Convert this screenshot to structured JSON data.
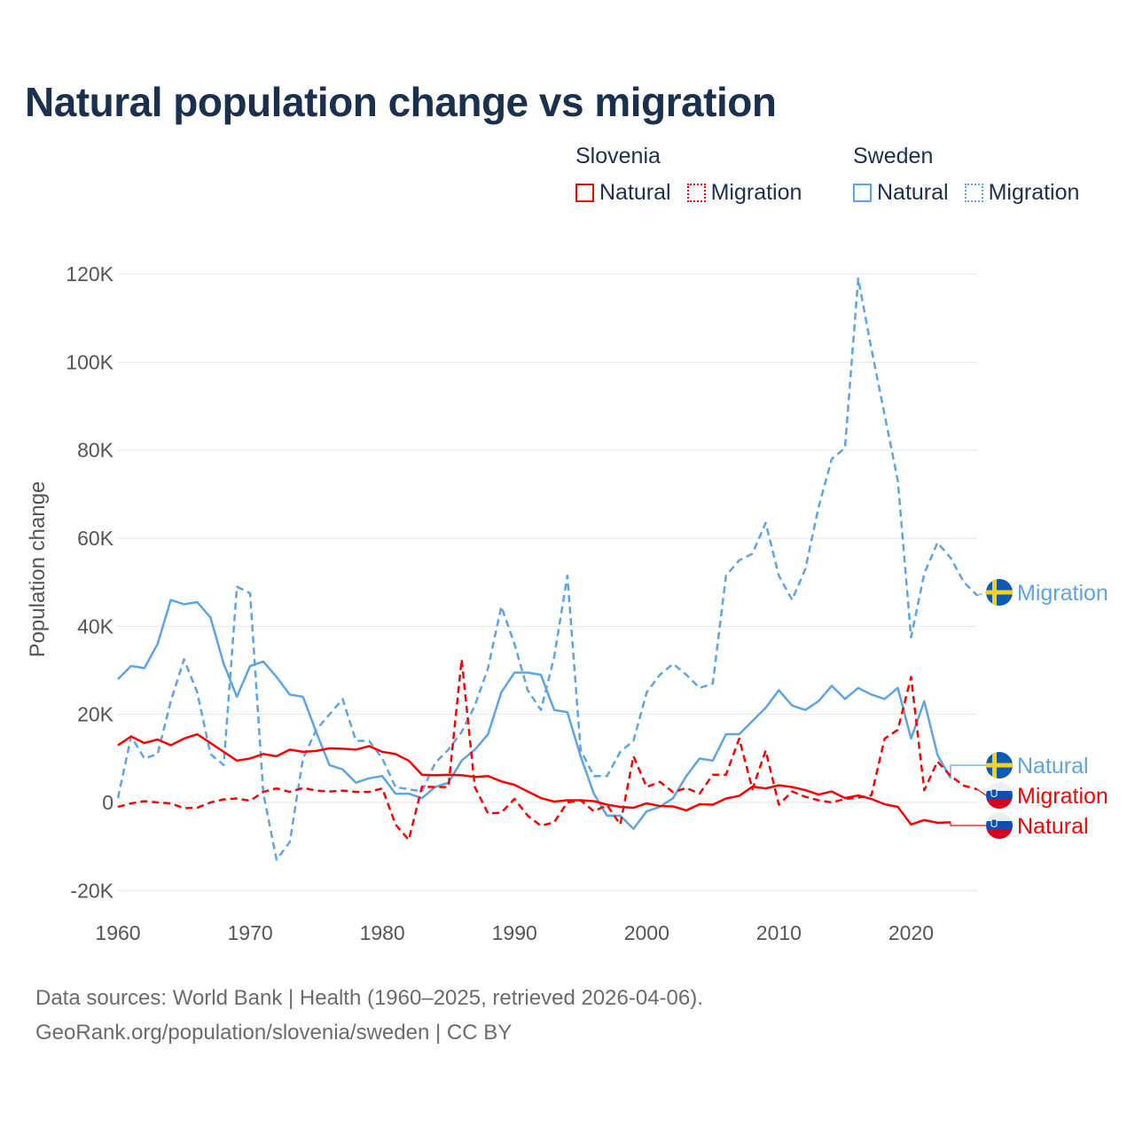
{
  "chart_data": {
    "type": "line",
    "title": "Natural population change vs migration",
    "ylabel": "Population change",
    "xlabel": "",
    "ylim": [
      -20000,
      120000
    ],
    "xlim": [
      1960,
      2025
    ],
    "yticks": [
      -20000,
      0,
      20000,
      40000,
      60000,
      80000,
      100000,
      120000
    ],
    "ytick_labels": [
      "-20K",
      "0",
      "20K",
      "40K",
      "60K",
      "80K",
      "100K",
      "120K"
    ],
    "xticks": [
      1960,
      1970,
      1980,
      1990,
      2000,
      2010,
      2020
    ],
    "xtick_labels": [
      "1960",
      "1970",
      "1980",
      "1990",
      "2000",
      "2010",
      "2020"
    ],
    "grid": true,
    "legend_placement": "top-right",
    "series": [
      {
        "name": "Sweden Migration",
        "country": "Sweden",
        "kind": "Migration",
        "label": "Migration",
        "color": "#5ba4e6",
        "dash": true,
        "flag": "sweden",
        "start": 1960,
        "values": [
          1000,
          15000,
          10000,
          11000,
          23000,
          32500,
          25000,
          11000,
          8500,
          49000,
          47500,
          2000,
          -13000,
          -9000,
          10000,
          16500,
          20000,
          23500,
          14000,
          14000,
          10000,
          3500,
          3000,
          2500,
          9000,
          12000,
          16000,
          22000,
          30500,
          44500,
          36000,
          25500,
          21000,
          33000,
          51500,
          12000,
          6000,
          6000,
          11500,
          14000,
          25000,
          29000,
          31500,
          29000,
          26000,
          27000,
          51500,
          55000,
          56500,
          63500,
          51500,
          46000,
          53000,
          67000,
          78000,
          80500,
          119000,
          103000,
          88000,
          73000,
          37500,
          52000,
          59000,
          55500,
          50000,
          47000
        ]
      },
      {
        "name": "Sweden Natural",
        "country": "Sweden",
        "kind": "Natural",
        "label": "Natural",
        "color": "#5ba4e6",
        "dash": false,
        "flag": "sweden",
        "start": 1960,
        "values": [
          28000,
          31000,
          30500,
          36000,
          46000,
          45000,
          45500,
          42000,
          31500,
          24000,
          31000,
          32000,
          28500,
          24500,
          24000,
          16000,
          8500,
          7500,
          4500,
          5500,
          6000,
          2000,
          2000,
          1000,
          3500,
          4500,
          9500,
          12000,
          15500,
          25000,
          29500,
          29500,
          29000,
          21000,
          20500,
          10500,
          2000,
          -3000,
          -3000,
          -6000,
          -2000,
          -1000,
          1000,
          6000,
          10000,
          9500,
          15500,
          15500,
          18500,
          21500,
          25500,
          22000,
          21000,
          23000,
          26500,
          23500,
          26000,
          24500,
          23500,
          26000,
          14500,
          23000,
          10800,
          5500
        ]
      },
      {
        "name": "Slovenia Migration",
        "country": "Slovenia",
        "kind": "Migration",
        "label": "Migration",
        "color": "#ff0000",
        "dash": true,
        "flag": "slovenia",
        "start": 1960,
        "values": [
          -1000,
          -200,
          300,
          0,
          -200,
          -1300,
          -1200,
          0,
          700,
          900,
          400,
          2400,
          3200,
          2400,
          3300,
          2700,
          2500,
          2700,
          2400,
          2400,
          3200,
          -5000,
          -8500,
          3600,
          3500,
          3500,
          32500,
          3500,
          -2500,
          -2300,
          800,
          -3000,
          -5300,
          -4500,
          0,
          500,
          -2000,
          -600,
          -5000,
          10500,
          3500,
          4700,
          2300,
          3300,
          2000,
          6300,
          6300,
          14500,
          3000,
          11800,
          -500,
          2500,
          1300,
          500,
          0,
          800,
          1100,
          1600,
          14500,
          16500,
          28500,
          2800,
          9300,
          6000,
          3800,
          3000
        ]
      },
      {
        "name": "Slovenia Natural",
        "country": "Slovenia",
        "kind": "Natural",
        "label": "Natural",
        "color": "#ff0000",
        "dash": false,
        "flag": "slovenia",
        "start": 1960,
        "values": [
          13000,
          15000,
          13500,
          14300,
          13000,
          14500,
          15500,
          13500,
          11500,
          9500,
          10000,
          11000,
          10500,
          12000,
          11500,
          11700,
          12300,
          12200,
          12000,
          12800,
          11500,
          11000,
          9500,
          6300,
          6200,
          6300,
          6200,
          5800,
          6000,
          4800,
          4000,
          2500,
          1000,
          200,
          500,
          500,
          300,
          -500,
          -1000,
          -1200,
          -200,
          -800,
          -900,
          -1800,
          -400,
          -500,
          900,
          1500,
          3600,
          3200,
          3900,
          3500,
          2800,
          1800,
          2500,
          1000,
          1600,
          800,
          -400,
          -1000,
          -5000,
          -4000,
          -4600,
          -4500
        ]
      }
    ]
  },
  "legend": {
    "groups": [
      {
        "country": "Slovenia",
        "color": "#ff0000",
        "items": [
          "Natural",
          "Migration"
        ]
      },
      {
        "country": "Sweden",
        "color": "#5ba4e6",
        "items": [
          "Natural",
          "Migration"
        ]
      }
    ]
  },
  "footer": {
    "line1": "Data sources: World Bank | Health (1960–2025, retrieved 2026-04-06).",
    "line2": "GeoRank.org/population/slovenia/sweden | CC BY"
  }
}
